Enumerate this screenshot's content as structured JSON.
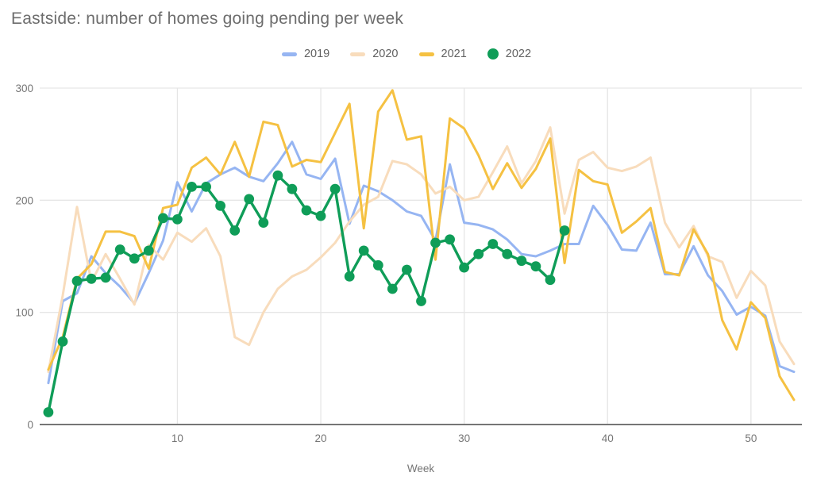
{
  "chart_data": {
    "type": "line",
    "title": "Eastside: number of homes going pending per week",
    "xlabel": "Week",
    "ylabel": "",
    "xlim": [
      1,
      53
    ],
    "ylim": [
      0,
      300
    ],
    "x_ticks": [
      10,
      20,
      30,
      40,
      50
    ],
    "y_ticks": [
      0,
      100,
      200,
      300
    ],
    "grid": true,
    "legend_position": "top",
    "background_color": "#ffffff",
    "axis_label_color": "#757575",
    "gridline_color": "#e6e6e6",
    "axis_line_color": "#757575",
    "series": [
      {
        "name": "2019",
        "color": "#96b5f2",
        "style": "line",
        "x_start_week": 1,
        "values": [
          37,
          110,
          117,
          150,
          135,
          123,
          108,
          135,
          164,
          216,
          190,
          215,
          223,
          229,
          221,
          217,
          233,
          252,
          223,
          219,
          237,
          179,
          213,
          208,
          200,
          190,
          186,
          164,
          232,
          180,
          178,
          174,
          165,
          152,
          150,
          155,
          161,
          161,
          195,
          178,
          156,
          155,
          180,
          134,
          134,
          159,
          133,
          119,
          98,
          105,
          97,
          52,
          47
        ]
      },
      {
        "name": "2020",
        "color": "#f8dcbc",
        "style": "line",
        "x_start_week": 1,
        "values": [
          47,
          115,
          194,
          127,
          152,
          130,
          107,
          160,
          147,
          171,
          163,
          175,
          150,
          78,
          71,
          100,
          121,
          132,
          138,
          149,
          162,
          181,
          196,
          203,
          235,
          232,
          223,
          206,
          212,
          200,
          203,
          225,
          248,
          215,
          235,
          265,
          188,
          236,
          243,
          229,
          226,
          230,
          238,
          180,
          158,
          177,
          150,
          145,
          113,
          137,
          124,
          74,
          54
        ]
      },
      {
        "name": "2021",
        "color": "#f5c142",
        "style": "line",
        "x_start_week": 1,
        "values": [
          49,
          78,
          130,
          143,
          172,
          172,
          168,
          139,
          193,
          196,
          229,
          238,
          223,
          252,
          221,
          270,
          267,
          230,
          236,
          234,
          260,
          286,
          175,
          279,
          298,
          254,
          257,
          147,
          273,
          264,
          240,
          210,
          233,
          211,
          228,
          255,
          144,
          227,
          217,
          214,
          171,
          181,
          193,
          136,
          133,
          174,
          152,
          93,
          67,
          109,
          95,
          43,
          22
        ]
      },
      {
        "name": "2022",
        "color": "#0f9d58",
        "style": "line+markers",
        "x_start_week": 1,
        "values": [
          11,
          74,
          128,
          130,
          131,
          156,
          148,
          155,
          184,
          183,
          212,
          212,
          195,
          173,
          201,
          180,
          222,
          210,
          191,
          186,
          210,
          132,
          155,
          142,
          121,
          138,
          110,
          162,
          165,
          140,
          152,
          161,
          152,
          146,
          141,
          129,
          173
        ]
      }
    ]
  }
}
